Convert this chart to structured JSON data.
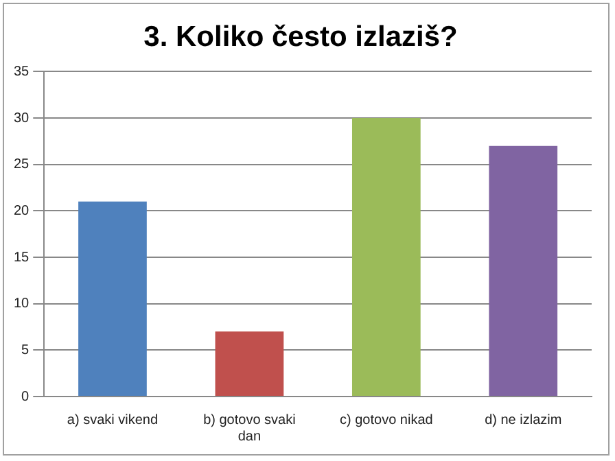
{
  "chart_data": {
    "type": "bar",
    "title": "3. Koliko često izlaziš?",
    "categories": [
      "a) svaki vikend",
      "b) gotovo svaki dan",
      "c) gotovo nikad",
      "d) ne izlazim"
    ],
    "values": [
      21,
      7,
      30,
      27
    ],
    "colors": [
      "#4f81bd",
      "#c0504d",
      "#9bbb59",
      "#8064a2"
    ],
    "ylim": [
      0,
      35
    ],
    "yticks": [
      0,
      5,
      10,
      15,
      20,
      25,
      30,
      35
    ],
    "grid": "y",
    "legend": false
  }
}
